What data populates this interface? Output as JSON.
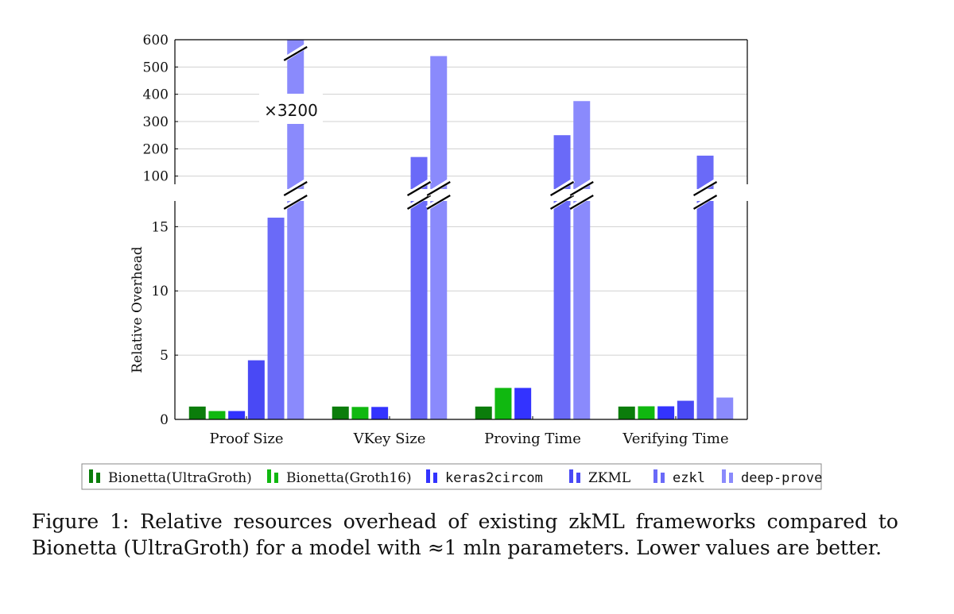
{
  "chart_data": {
    "type": "bar",
    "ylabel": "Relative Overhead",
    "categories": [
      "Proof Size",
      "VKey Size",
      "Proving Time",
      "Verifying Time"
    ],
    "axis_break": true,
    "lower_ylim": [
      0,
      17
    ],
    "lower_ticks": [
      "0",
      "5",
      "10",
      "15"
    ],
    "upper_ylim": [
      70,
      600
    ],
    "upper_ticks": [
      "100",
      "200",
      "300",
      "400",
      "500",
      "600"
    ],
    "grid": true,
    "legend_position": "bottom",
    "series": [
      {
        "name": "Bionetta(UltraGroth)",
        "color": "#0b7d0b",
        "values": [
          1,
          1,
          1,
          1
        ]
      },
      {
        "name": "Bionetta(Groth16)",
        "color": "#10b810",
        "values": [
          0.65,
          0.97,
          2.45,
          1.02
        ]
      },
      {
        "name": "keras2circom",
        "color": "#3333ff",
        "values": [
          0.65,
          0.97,
          2.45,
          1.02
        ]
      },
      {
        "name": "ZKML",
        "color": "#4949f5",
        "values": [
          4.6,
          null,
          null,
          1.45
        ]
      },
      {
        "name": "ezkl",
        "color": "#6a6af8",
        "values": [
          15.7,
          170,
          250,
          175
        ]
      },
      {
        "name": "deep-prove",
        "color": "#8a8afc",
        "values": [
          3200,
          540,
          375,
          1.7
        ]
      }
    ],
    "annotations": [
      {
        "text": "×3200",
        "category": "Proof Size",
        "series": "deep-prove"
      }
    ]
  },
  "caption": {
    "text": "Figure 1: Relative resources overhead of existing zkML frameworks compared to Bionetta (UltraGroth) for a model with ≈1 mln parameters. Lower values are better."
  }
}
